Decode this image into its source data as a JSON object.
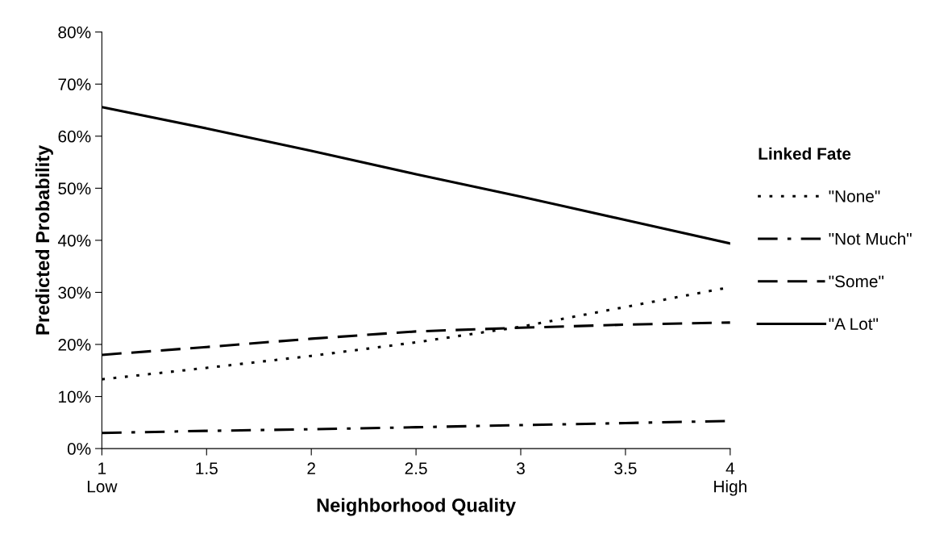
{
  "chart_data": {
    "type": "line",
    "xlabel": "Neighborhood Quality",
    "ylabel": "Predicted Probability",
    "legend_title": "Linked Fate",
    "legend": "right",
    "grid": false,
    "marker": "none",
    "x": [
      1,
      1.5,
      2,
      2.5,
      3,
      3.5,
      4
    ],
    "xlim": [
      1,
      4
    ],
    "xticks": [
      {
        "value": 1,
        "label": "1\nLow"
      },
      1.5,
      2,
      2.5,
      3,
      3.5,
      {
        "value": 4,
        "label": "4\nHigh"
      }
    ],
    "ylim": [
      0,
      80
    ],
    "yticks": [
      {
        "value": 0,
        "label": "0%"
      },
      {
        "value": 10,
        "label": "10%"
      },
      {
        "value": 20,
        "label": "20%"
      },
      {
        "value": 30,
        "label": "30%"
      },
      {
        "value": 40,
        "label": "40%"
      },
      {
        "value": 50,
        "label": "50%"
      },
      {
        "value": 60,
        "label": "60%"
      },
      {
        "value": 70,
        "label": "70%"
      },
      {
        "value": 80,
        "label": "80%"
      }
    ],
    "series": [
      {
        "name": "\"None\"",
        "color": "#000000",
        "line_style": "dotted",
        "values": [
          13.3,
          15.5,
          17.8,
          20.4,
          23.4,
          27.2,
          31.0
        ]
      },
      {
        "name": "\"Not Much\"",
        "color": "#000000",
        "line_style": "dashdot",
        "values": [
          3.0,
          3.4,
          3.7,
          4.1,
          4.5,
          4.9,
          5.3
        ]
      },
      {
        "name": "\"Some\"",
        "color": "#000000",
        "line_style": "dashed",
        "values": [
          18.0,
          19.5,
          21.1,
          22.5,
          23.2,
          23.8,
          24.2
        ]
      },
      {
        "name": "\"A Lot\"",
        "color": "#000000",
        "line_style": "solid",
        "values": [
          65.6,
          61.5,
          57.2,
          52.7,
          48.4,
          43.9,
          39.4
        ]
      }
    ]
  }
}
